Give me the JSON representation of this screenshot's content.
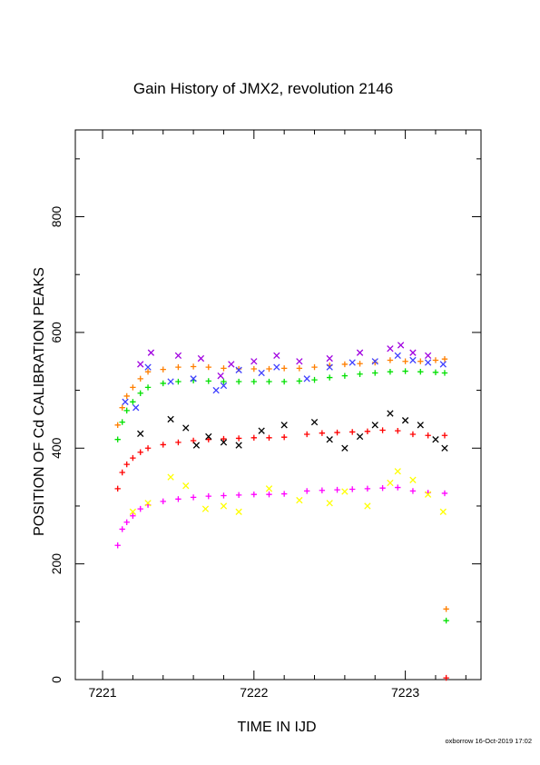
{
  "chart_data": {
    "type": "scatter",
    "title": "Gain History of JMX2, revolution 2146",
    "xlabel": "TIME IN IJD",
    "ylabel": "POSITION OF Cd CALIBRATION PEAKS",
    "xlim": [
      7220.82,
      7223.5
    ],
    "ylim": [
      0,
      950
    ],
    "xticks": [
      7221,
      7222,
      7223
    ],
    "yticks": [
      0,
      200,
      400,
      600,
      800
    ],
    "grid": false,
    "footer": "oxborrow 16-Oct-2019 17:02",
    "colors": {
      "orange": "#ff7f00",
      "green": "#00e000",
      "blue": "#3f3fff",
      "purple": "#a000e0",
      "red": "#ff0000",
      "black": "#000000",
      "magenta": "#ff00ff",
      "yellow": "#ffff00"
    },
    "series": [
      {
        "color": "orange",
        "marker": "plus",
        "x": [
          7221.1,
          7221.13,
          7221.16,
          7221.2,
          7221.25,
          7221.3,
          7221.4,
          7221.5,
          7221.6,
          7221.7,
          7221.8,
          7221.9,
          7222.0,
          7222.1,
          7222.2,
          7222.3,
          7222.4,
          7222.5,
          7222.6,
          7222.7,
          7222.8,
          7222.9,
          7223.0,
          7223.1,
          7223.2,
          7223.26
        ],
        "y": [
          440,
          470,
          490,
          505,
          520,
          532,
          536,
          540,
          541,
          540,
          538,
          537,
          537,
          537,
          538,
          538,
          540,
          543,
          545,
          546,
          548,
          552,
          550,
          550,
          552,
          554
        ]
      },
      {
        "color": "green",
        "marker": "plus",
        "x": [
          7221.1,
          7221.13,
          7221.16,
          7221.2,
          7221.25,
          7221.3,
          7221.4,
          7221.5,
          7221.6,
          7221.7,
          7221.8,
          7221.9,
          7222.0,
          7222.1,
          7222.2,
          7222.3,
          7222.4,
          7222.5,
          7222.6,
          7222.7,
          7222.8,
          7222.9,
          7223.0,
          7223.1,
          7223.2,
          7223.26
        ],
        "y": [
          415,
          445,
          465,
          480,
          495,
          505,
          512,
          515,
          517,
          516,
          515,
          515,
          515,
          515,
          515,
          516,
          518,
          522,
          525,
          528,
          530,
          532,
          533,
          532,
          531,
          530
        ]
      },
      {
        "color": "blue",
        "marker": "x",
        "x": [
          7221.15,
          7221.22,
          7221.3,
          7221.45,
          7221.6,
          7221.75,
          7221.8,
          7221.9,
          7222.05,
          7222.15,
          7222.35,
          7222.5,
          7222.65,
          7222.8,
          7222.95,
          7223.05,
          7223.15,
          7223.25
        ],
        "y": [
          480,
          470,
          540,
          515,
          520,
          500,
          508,
          535,
          530,
          540,
          520,
          540,
          548,
          550,
          560,
          552,
          548,
          545
        ]
      },
      {
        "color": "purple",
        "marker": "x",
        "x": [
          7221.25,
          7221.32,
          7221.5,
          7221.65,
          7221.78,
          7221.85,
          7222.0,
          7222.15,
          7222.3,
          7222.5,
          7222.7,
          7222.9,
          7222.97,
          7223.05,
          7223.15
        ],
        "y": [
          545,
          565,
          560,
          555,
          525,
          545,
          550,
          560,
          550,
          555,
          565,
          572,
          578,
          565,
          560
        ]
      },
      {
        "color": "red",
        "marker": "plus",
        "x": [
          7221.1,
          7221.13,
          7221.16,
          7221.2,
          7221.25,
          7221.3,
          7221.4,
          7221.5,
          7221.6,
          7221.7,
          7221.8,
          7221.9,
          7222.0,
          7222.1,
          7222.2,
          7222.35,
          7222.45,
          7222.55,
          7222.65,
          7222.75,
          7222.85,
          7222.95,
          7223.05,
          7223.15,
          7223.26
        ],
        "y": [
          330,
          358,
          372,
          383,
          393,
          400,
          406,
          410,
          413,
          415,
          416,
          417,
          418,
          418,
          419,
          424,
          426,
          427,
          428,
          429,
          431,
          430,
          424,
          422,
          422
        ]
      },
      {
        "color": "black",
        "marker": "x",
        "x": [
          7221.25,
          7221.45,
          7221.55,
          7221.62,
          7221.7,
          7221.8,
          7221.9,
          7222.05,
          7222.2,
          7222.4,
          7222.5,
          7222.6,
          7222.7,
          7222.8,
          7222.9,
          7223.0,
          7223.1,
          7223.2,
          7223.26
        ],
        "y": [
          425,
          450,
          435,
          405,
          420,
          410,
          405,
          430,
          440,
          445,
          415,
          400,
          420,
          440,
          460,
          448,
          440,
          415,
          400
        ]
      },
      {
        "color": "magenta",
        "marker": "plus",
        "x": [
          7221.1,
          7221.13,
          7221.16,
          7221.2,
          7221.25,
          7221.3,
          7221.4,
          7221.5,
          7221.6,
          7221.7,
          7221.8,
          7221.9,
          7222.0,
          7222.1,
          7222.2,
          7222.35,
          7222.45,
          7222.55,
          7222.65,
          7222.75,
          7222.85,
          7222.95,
          7223.05,
          7223.15,
          7223.26
        ],
        "y": [
          232,
          260,
          272,
          283,
          295,
          302,
          308,
          312,
          315,
          317,
          318,
          319,
          320,
          320,
          321,
          326,
          327,
          328,
          329,
          330,
          331,
          332,
          326,
          323,
          322
        ]
      },
      {
        "color": "yellow",
        "marker": "x",
        "x": [
          7221.2,
          7221.3,
          7221.45,
          7221.55,
          7221.68,
          7221.8,
          7221.9,
          7222.1,
          7222.3,
          7222.5,
          7222.6,
          7222.75,
          7222.9,
          7222.95,
          7223.05,
          7223.15,
          7223.25
        ],
        "y": [
          290,
          305,
          350,
          335,
          295,
          300,
          290,
          330,
          310,
          305,
          325,
          300,
          340,
          360,
          345,
          320,
          290
        ]
      },
      {
        "color": "orange",
        "marker": "plus",
        "x": [
          7223.27
        ],
        "y": [
          122
        ]
      },
      {
        "color": "green",
        "marker": "plus",
        "x": [
          7223.27
        ],
        "y": [
          102
        ]
      },
      {
        "color": "red",
        "marker": "plus",
        "x": [
          7223.27
        ],
        "y": [
          3
        ]
      }
    ]
  }
}
